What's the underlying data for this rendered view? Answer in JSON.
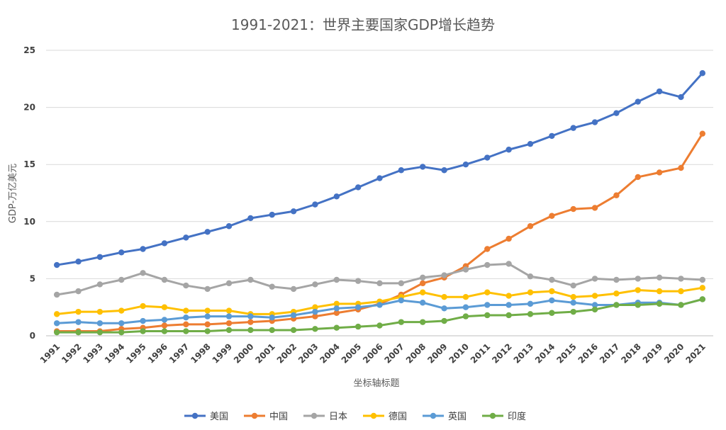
{
  "chart_data": {
    "type": "line",
    "title": "1991-2021：世界主要国家GDP增长趋势",
    "xlabel": "坐标轴标题",
    "ylabel": "GDP-万亿美元",
    "ylim": [
      0,
      25
    ],
    "yticks": [
      0,
      5,
      10,
      15,
      20,
      25
    ],
    "grid": true,
    "legend_position": "bottom",
    "categories": [
      "1991",
      "1992",
      "1993",
      "1994",
      "1995",
      "1996",
      "1997",
      "1998",
      "1999",
      "2000",
      "2001",
      "2002",
      "2003",
      "2004",
      "2005",
      "2006",
      "2007",
      "2008",
      "2009",
      "2010",
      "2011",
      "2012",
      "2013",
      "2014",
      "2015",
      "2016",
      "2017",
      "2018",
      "2019",
      "2020",
      "2021"
    ],
    "series": [
      {
        "name": "美国",
        "color": "#4472C4",
        "values": [
          6.2,
          6.5,
          6.9,
          7.3,
          7.6,
          8.1,
          8.6,
          9.1,
          9.6,
          10.3,
          10.6,
          10.9,
          11.5,
          12.2,
          13.0,
          13.8,
          14.5,
          14.8,
          14.5,
          15.0,
          15.6,
          16.3,
          16.8,
          17.5,
          18.2,
          18.7,
          19.5,
          20.5,
          21.4,
          20.9,
          23.0
        ]
      },
      {
        "name": "中国",
        "color": "#ED7D31",
        "values": [
          0.4,
          0.4,
          0.4,
          0.6,
          0.7,
          0.9,
          1.0,
          1.0,
          1.1,
          1.2,
          1.3,
          1.5,
          1.7,
          2.0,
          2.3,
          2.8,
          3.6,
          4.6,
          5.1,
          6.1,
          7.6,
          8.5,
          9.6,
          10.5,
          11.1,
          11.2,
          12.3,
          13.9,
          14.3,
          14.7,
          17.7
        ]
      },
      {
        "name": "日本",
        "color": "#A5A5A5",
        "values": [
          3.6,
          3.9,
          4.5,
          4.9,
          5.5,
          4.9,
          4.4,
          4.1,
          4.6,
          4.9,
          4.3,
          4.1,
          4.5,
          4.9,
          4.8,
          4.6,
          4.6,
          5.1,
          5.3,
          5.8,
          6.2,
          6.3,
          5.2,
          4.9,
          4.4,
          5.0,
          4.9,
          5.0,
          5.1,
          5.0,
          4.9
        ]
      },
      {
        "name": "德国",
        "color": "#FFC000",
        "values": [
          1.9,
          2.1,
          2.1,
          2.2,
          2.6,
          2.5,
          2.2,
          2.2,
          2.2,
          1.9,
          1.9,
          2.1,
          2.5,
          2.8,
          2.8,
          3.0,
          3.4,
          3.8,
          3.4,
          3.4,
          3.8,
          3.5,
          3.8,
          3.9,
          3.4,
          3.5,
          3.7,
          4.0,
          3.9,
          3.9,
          4.2
        ]
      },
      {
        "name": "英国",
        "color": "#5B9BD5",
        "values": [
          1.1,
          1.2,
          1.1,
          1.1,
          1.3,
          1.4,
          1.6,
          1.7,
          1.7,
          1.7,
          1.6,
          1.8,
          2.1,
          2.4,
          2.5,
          2.7,
          3.1,
          2.9,
          2.4,
          2.5,
          2.7,
          2.7,
          2.8,
          3.1,
          2.9,
          2.7,
          2.7,
          2.9,
          2.9,
          2.7,
          3.2
        ]
      },
      {
        "name": "印度",
        "color": "#70AD47",
        "values": [
          0.3,
          0.3,
          0.3,
          0.3,
          0.4,
          0.4,
          0.4,
          0.4,
          0.5,
          0.5,
          0.5,
          0.5,
          0.6,
          0.7,
          0.8,
          0.9,
          1.2,
          1.2,
          1.3,
          1.7,
          1.8,
          1.8,
          1.9,
          2.0,
          2.1,
          2.3,
          2.7,
          2.7,
          2.8,
          2.7,
          3.2
        ]
      }
    ]
  }
}
